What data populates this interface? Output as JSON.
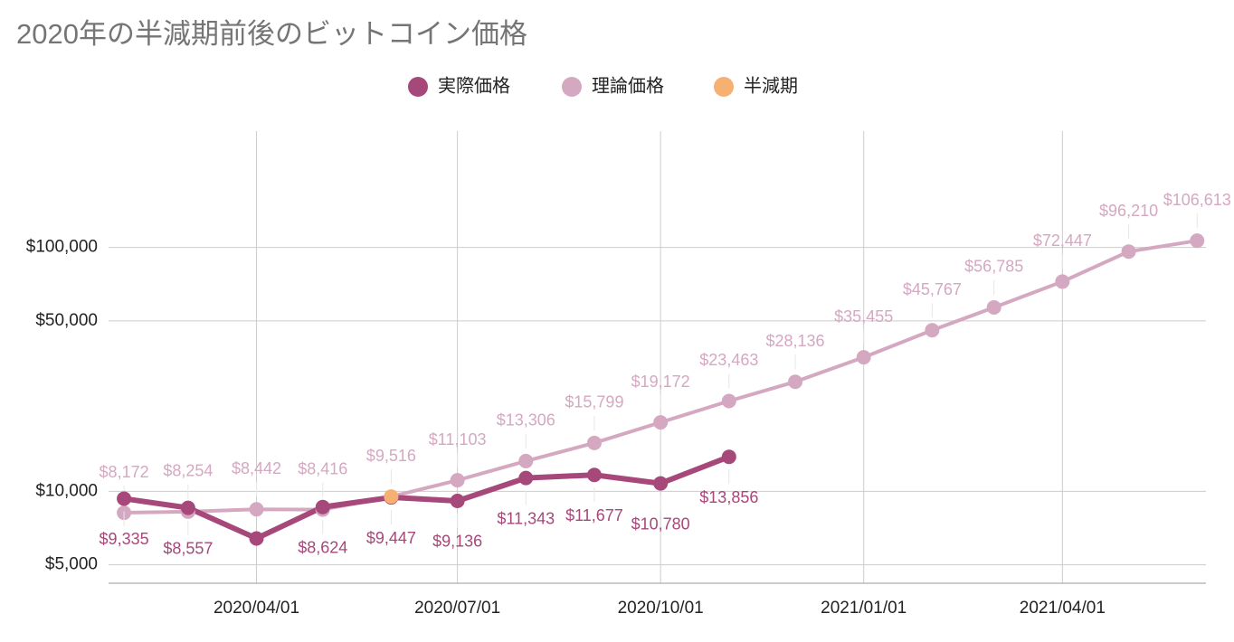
{
  "chart_data": {
    "type": "line",
    "title": "2020年の半減期前後のビットコイン価格",
    "x": [
      "2020/02/01",
      "2020/03/01",
      "2020/04/01",
      "2020/05/01",
      "2020/06/01",
      "2020/07/01",
      "2020/08/01",
      "2020/09/01",
      "2020/10/01",
      "2020/11/01",
      "2020/12/01",
      "2021/01/01",
      "2021/02/01",
      "2021/03/01",
      "2021/04/01",
      "2021/05/01",
      "2021/06/01"
    ],
    "series": [
      {
        "name": "実際価格",
        "color": "#a6487a",
        "values": [
          9335,
          8557,
          6412,
          8624,
          9447,
          9136,
          11343,
          11677,
          10780,
          13856,
          null,
          null,
          null,
          null,
          null,
          null,
          null
        ],
        "value_labels": [
          "$9,335",
          "$8,557",
          null,
          "$8,624",
          "$9,447",
          "$9,136",
          "$11,343",
          "$11,677",
          "$10,780",
          "$13,856",
          null,
          null,
          null,
          null,
          null,
          null,
          null
        ]
      },
      {
        "name": "理論価格",
        "color": "#d5a8c1",
        "values": [
          8172,
          8254,
          8442,
          8416,
          9516,
          11103,
          13306,
          15799,
          19172,
          23463,
          28136,
          35455,
          45767,
          56785,
          72447,
          96210,
          106613
        ],
        "value_labels": [
          "$8,172",
          "$8,254",
          "$8,442",
          "$8,416",
          "$9,516",
          "$11,103",
          "$13,306",
          "$15,799",
          "$19,172",
          "$23,463",
          "$28,136",
          "$35,455",
          "$45,767",
          "$56,785",
          "$72,447",
          "$96,210",
          "$106,613"
        ]
      },
      {
        "name": "半減期",
        "color": "#f5b072",
        "values": [
          null,
          null,
          null,
          null,
          9516,
          null,
          null,
          null,
          null,
          null,
          null,
          null,
          null,
          null,
          null,
          null,
          null
        ]
      }
    ],
    "xlim": [
      "2020/01/25",
      "2021/06/05"
    ],
    "xticks": [
      "2020/04/01",
      "2020/07/01",
      "2020/10/01",
      "2021/01/01",
      "2021/04/01"
    ],
    "ylim": [
      4200,
      300000
    ],
    "yticks": [
      {
        "value": 5000,
        "label": "$5,000"
      },
      {
        "value": 10000,
        "label": "$10,000"
      },
      {
        "value": 50000,
        "label": "$50,000"
      },
      {
        "value": 100000,
        "label": "$100,000"
      }
    ],
    "log_scale": true,
    "grid": true,
    "legend": "top"
  }
}
